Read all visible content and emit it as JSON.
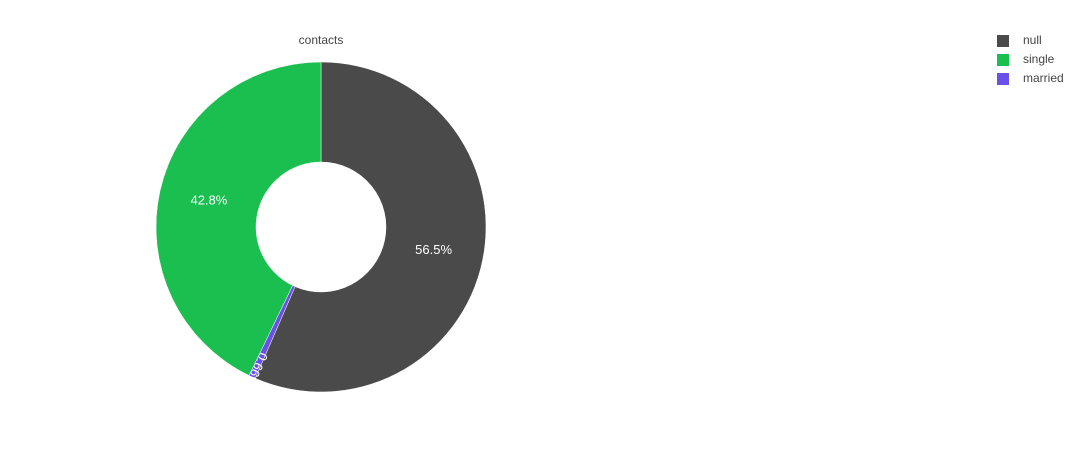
{
  "chart_data": {
    "type": "pie",
    "title": "contacts",
    "categories": [
      "null",
      "single",
      "married"
    ],
    "values": [
      56.5,
      42.8,
      0.66
    ],
    "value_labels": [
      "56.5%",
      "42.8%",
      "0.66%"
    ],
    "colors": [
      "#4a4a4a",
      "#1abf50",
      "#6a50e8"
    ],
    "hole": true,
    "legend": "top-right"
  }
}
